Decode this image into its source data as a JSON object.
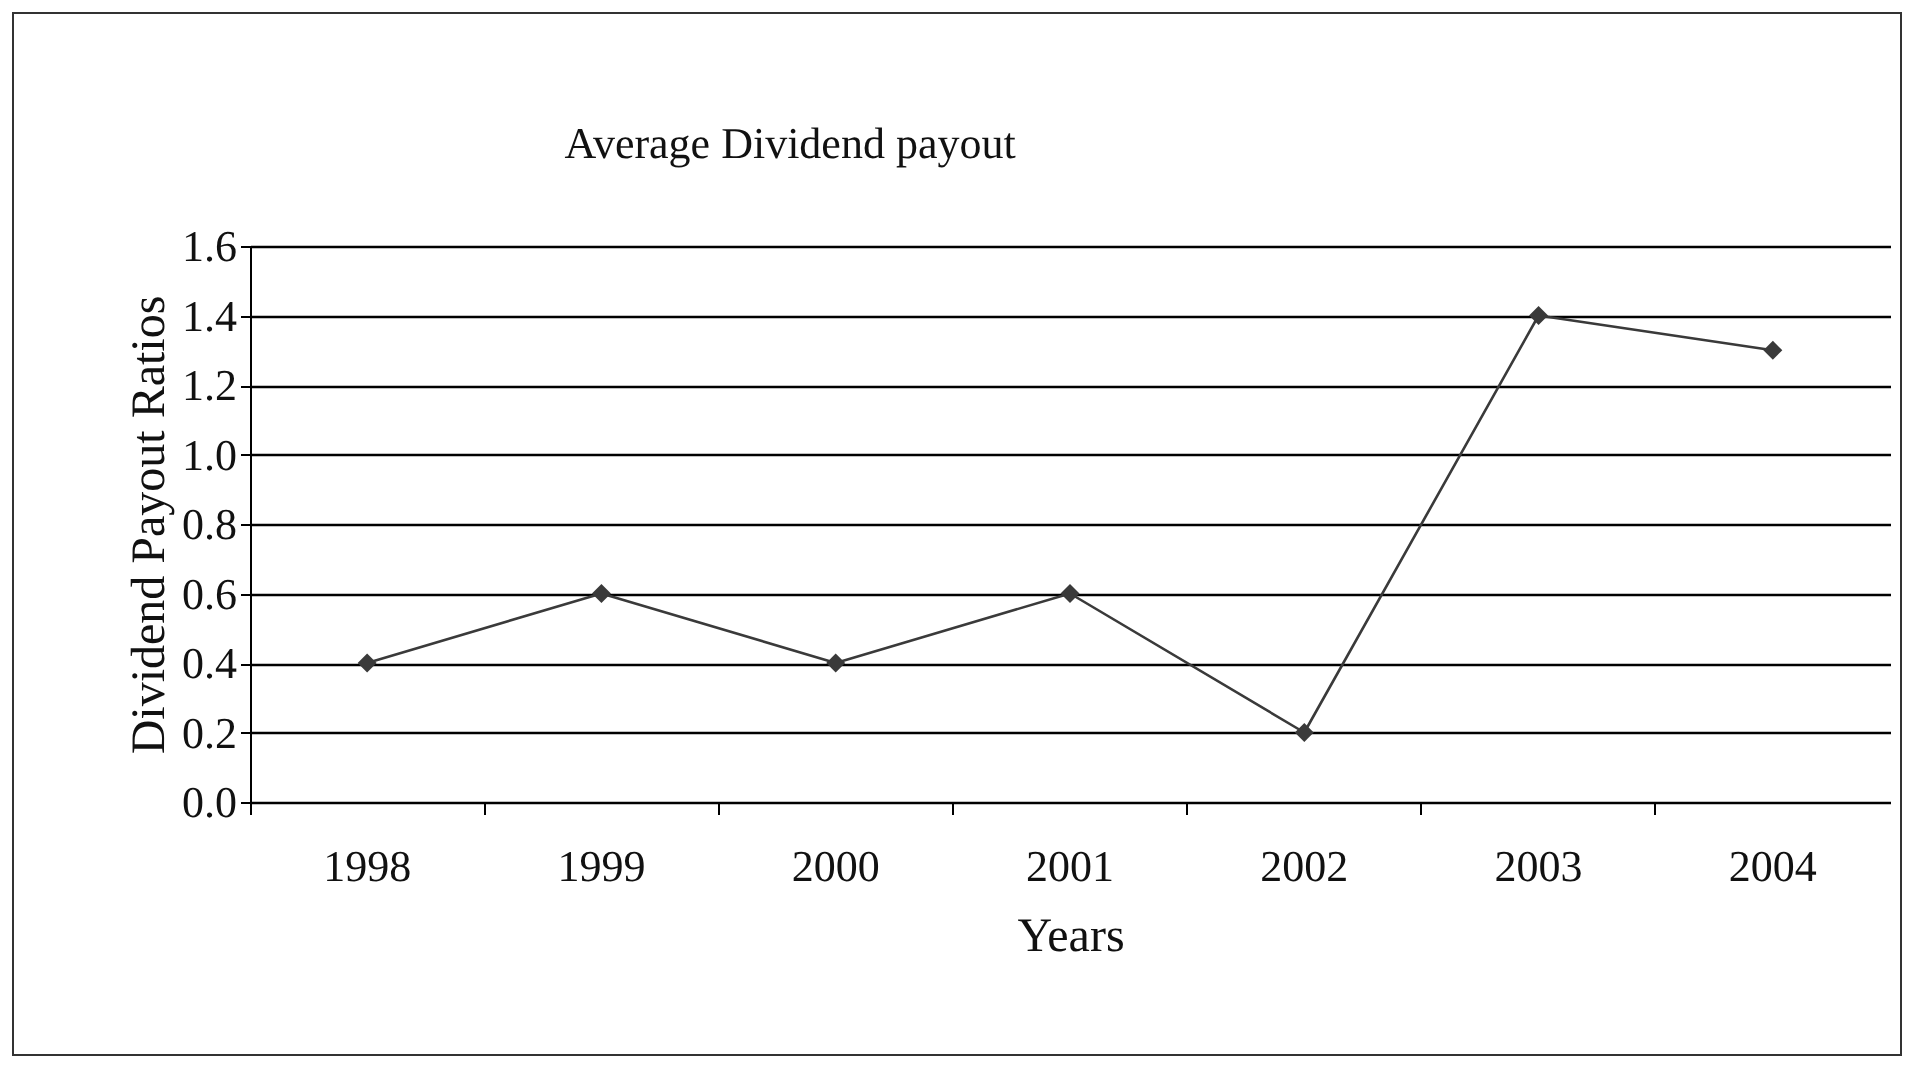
{
  "chart_data": {
    "type": "line",
    "title": "Average Dividend payout",
    "xlabel": "Years",
    "ylabel": "Dividend Payout Ratios",
    "categories": [
      "1998",
      "1999",
      "2000",
      "2001",
      "2002",
      "2003",
      "2004"
    ],
    "series": [
      {
        "color": "#3a3a3a",
        "values": [
          0.4,
          0.6,
          0.4,
          0.6,
          0.2,
          1.4,
          1.3
        ]
      }
    ],
    "ylim": [
      0,
      1.6
    ],
    "yticks": [
      {
        "value": 0,
        "label": "0.0"
      },
      {
        "value": 0.2,
        "label": "0.2"
      },
      {
        "value": 0.4,
        "label": "0.4"
      },
      {
        "value": 0.6,
        "label": "0.6"
      },
      {
        "value": 0.8,
        "label": "0.8"
      },
      {
        "value": 1,
        "label": "1.0"
      },
      {
        "value": 1.2,
        "label": "1.2"
      },
      {
        "value": 1.4,
        "label": "1.4"
      },
      {
        "value": 1.6,
        "label": "1.6"
      }
    ],
    "grid": "y",
    "marker": "diamond",
    "line_style": "solid"
  }
}
